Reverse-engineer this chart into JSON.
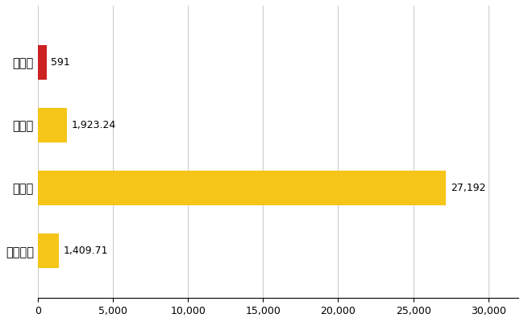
{
  "categories": [
    "宇美町",
    "県平均",
    "県最大",
    "全国平均"
  ],
  "values": [
    591,
    1923.24,
    27192,
    1409.71
  ],
  "bar_colors": [
    "#cc2222",
    "#f5c518",
    "#f5c518",
    "#f5c518"
  ],
  "value_labels": [
    "591",
    "1,923.24",
    "27,192",
    "1,409.71"
  ],
  "xlim": [
    0,
    32000
  ],
  "xticks": [
    0,
    5000,
    10000,
    15000,
    20000,
    25000,
    30000
  ],
  "grid_color": "#cccccc",
  "background_color": "#ffffff",
  "bar_height": 0.55,
  "label_fontsize": 10.5,
  "tick_fontsize": 9,
  "value_label_fontsize": 9
}
